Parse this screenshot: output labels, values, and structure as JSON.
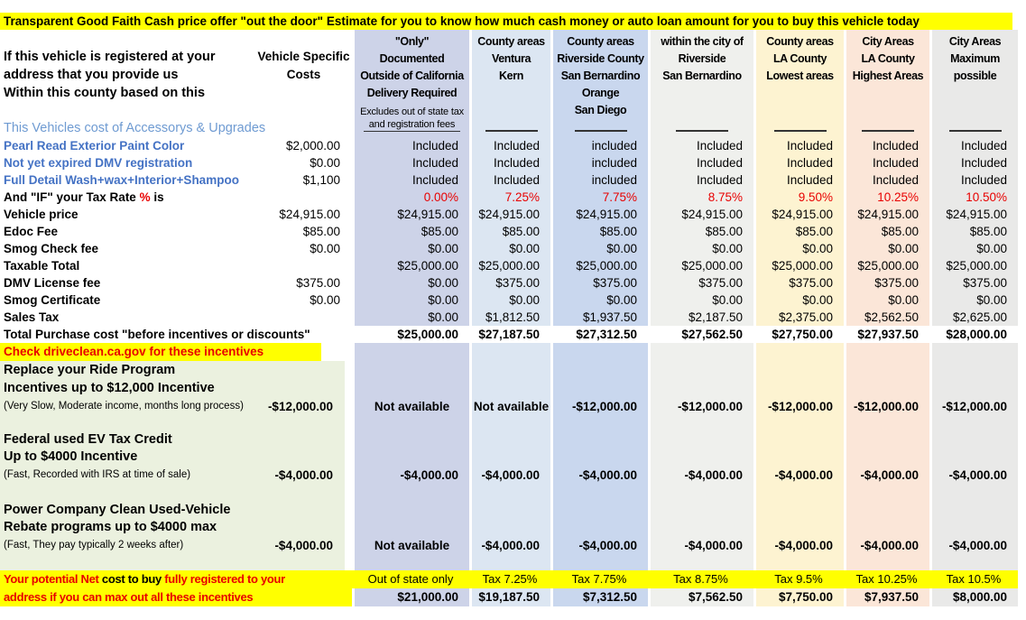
{
  "title": "Transparent Good Faith Cash price offer \"out the door\" Estimate for you to know how much cash money or auto loan amount for you to buy this vehicle today",
  "header": {
    "left_lines": [
      "If this vehicle is registered at your",
      "address that you provide us",
      "Within this county based on this"
    ],
    "costs_lines": [
      "Vehicle Specific",
      "Costs"
    ],
    "columns": [
      {
        "lines": [
          "\"Only\"",
          "Documented",
          "Outside of California",
          "Delivery Required"
        ],
        "note": [
          "Excludes out of state tax",
          "and registration fees"
        ]
      },
      {
        "lines": [
          "County areas",
          "Ventura",
          "Kern"
        ]
      },
      {
        "lines": [
          "County areas",
          "Riverside County",
          "San Bernardino",
          "Orange",
          "San Diego"
        ]
      },
      {
        "lines": [
          "within the city of",
          "Riverside",
          "San Bernardino"
        ]
      },
      {
        "lines": [
          "County areas",
          "LA County",
          "Lowest areas"
        ]
      },
      {
        "lines": [
          "City Areas",
          "LA County",
          "Highest Areas"
        ]
      },
      {
        "lines": [
          "City Areas",
          "Maximum",
          "possible"
        ]
      }
    ]
  },
  "sections": {
    "accessories_label": "This Vehicles cost of Accessorys & Upgrades"
  },
  "accessories": [
    {
      "label": "Pearl Read Exterior Paint Color",
      "cost": "$2,000.00",
      "values": [
        "Included",
        "Included",
        "included",
        "Included",
        "Included",
        "Included",
        "Included"
      ]
    },
    {
      "label": "Not yet expired DMV registration",
      "cost": "$0.00",
      "values": [
        "Included",
        "Included",
        "included",
        "Included",
        "Included",
        "Included",
        "Included"
      ]
    },
    {
      "label": "Full Detail Wash+wax+Interior+Shampoo",
      "cost": "$1,100",
      "values": [
        "Included",
        "Included",
        "included",
        "Included",
        "Included",
        "Included",
        "Included"
      ]
    }
  ],
  "tax_row": {
    "prefix": "And \"IF\" your Tax Rate ",
    "pct": "%",
    "suffix": " is",
    "values": [
      "0.00%",
      "7.25%",
      "7.75%",
      "8.75%",
      "9.50%",
      "10.25%",
      "10.50%"
    ]
  },
  "cost_rows": [
    {
      "label": "Vehicle price",
      "cost": "$24,915.00",
      "values": [
        "$24,915.00",
        "$24,915.00",
        "$24,915.00",
        "$24,915.00",
        "$24,915.00",
        "$24,915.00",
        "$24,915.00"
      ]
    },
    {
      "label": "Edoc Fee",
      "cost": "$85.00",
      "values": [
        "$85.00",
        "$85.00",
        "$85.00",
        "$85.00",
        "$85.00",
        "$85.00",
        "$85.00"
      ]
    },
    {
      "label": "Smog Check fee",
      "cost": "$0.00",
      "values": [
        "$0.00",
        "$0.00",
        "$0.00",
        "$0.00",
        "$0.00",
        "$0.00",
        "$0.00"
      ]
    },
    {
      "label": "Taxable Total",
      "cost": "",
      "values": [
        "$25,000.00",
        "$25,000.00",
        "$25,000.00",
        "$25,000.00",
        "$25,000.00",
        "$25,000.00",
        "$25,000.00"
      ]
    },
    {
      "label": "DMV License fee",
      "cost": "$375.00",
      "values": [
        "$0.00",
        "$375.00",
        "$375.00",
        "$375.00",
        "$375.00",
        "$375.00",
        "$375.00"
      ]
    },
    {
      "label": "Smog Certificate",
      "cost": "$0.00",
      "values": [
        "$0.00",
        "$0.00",
        "$0.00",
        "$0.00",
        "$0.00",
        "$0.00",
        "$0.00"
      ]
    },
    {
      "label": "Sales Tax",
      "cost": "",
      "values": [
        "$0.00",
        "$1,812.50",
        "$1,937.50",
        "$2,187.50",
        "$2,375.00",
        "$2,562.50",
        "$2,625.00"
      ]
    }
  ],
  "total_row": {
    "label": "Total Purchase cost \"before incentives or discounts\"",
    "values": [
      "$25,000.00",
      "$27,187.50",
      "$27,312.50",
      "$27,562.50",
      "$27,750.00",
      "$27,937.50",
      "$28,000.00"
    ]
  },
  "incentives": {
    "banner": "Check  driveclean.ca.gov  for these incentives",
    "programs": [
      {
        "line1": "Replace your Ride Program",
        "line2": "Incentives up to $12,000 Incentive",
        "note": "(Very Slow, Moderate income, months long process)",
        "cost": "-$12,000.00",
        "values": [
          "Not available",
          "Not available",
          "-$12,000.00",
          "-$12,000.00",
          "-$12,000.00",
          "-$12,000.00",
          "-$12,000.00"
        ]
      },
      {
        "line1": "Federal used EV Tax Credit",
        "line2": "Up to $4000 Incentive",
        "note": "(Fast, Recorded with IRS at time of sale)",
        "cost": "-$4,000.00",
        "values": [
          "-$4,000.00",
          "-$4,000.00",
          "-$4,000.00",
          "-$4,000.00",
          "-$4,000.00",
          "-$4,000.00",
          "-$4,000.00"
        ]
      },
      {
        "line1": "Power Company Clean Used-Vehicle",
        "line2": "Rebate programs up to $4000 max",
        "note": "(Fast, They pay typically 2 weeks after)",
        "cost": "-$4,000.00",
        "values": [
          "Not available",
          "-$4,000.00",
          "-$4,000.00",
          "-$4,000.00",
          "-$4,000.00",
          "-$4,000.00",
          "-$4,000.00"
        ]
      }
    ]
  },
  "footer": {
    "red1": "Your potential Net",
    "black": "cost to buy",
    "red2": "fully registered to your",
    "line2": "address if you can max out all these incentives",
    "tax_labels": [
      "Out of state only",
      "Tax 7.25%",
      "Tax 7.75%",
      "Tax 8.75%",
      "Tax 9.5%",
      "Tax 10.25%",
      "Tax 10.5%"
    ],
    "values": [
      "$21,000.00",
      "$19,187.50",
      "$7,312.50",
      "$7,562.50",
      "$7,750.00",
      "$7,937.50",
      "$8,000.00"
    ]
  },
  "colors": {
    "banner_yellow": "#ffff00",
    "alert_red": "#e80000",
    "label_blue": "#4472c4",
    "section_blue": "#6f9bd2",
    "incentive_green": "#ebf1df",
    "col_out_of_state": "#cdd3e8",
    "col_ventura_kern": "#dce6f2",
    "col_riverside_county": "#c9d7ee",
    "col_city_riverside": "#eff0ed",
    "col_la_lowest": "#fdf3d1",
    "col_la_highest": "#fbe6d8",
    "col_maximum": "#e9e9e8"
  }
}
